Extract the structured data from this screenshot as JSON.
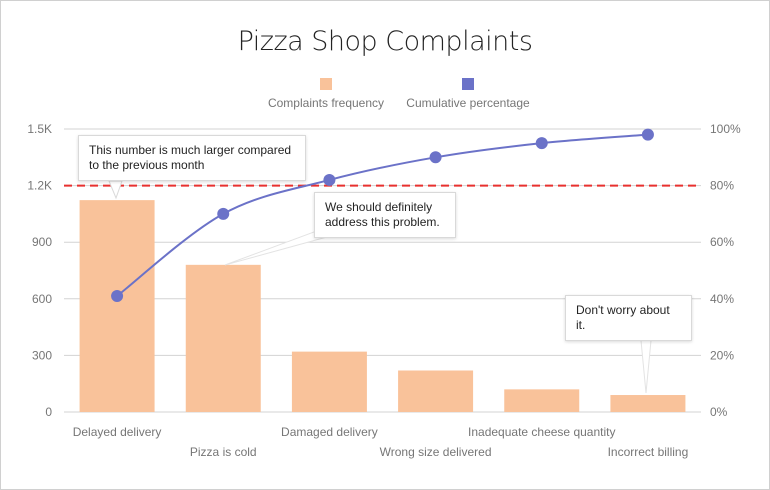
{
  "chart_data": {
    "type": "bar",
    "title": "Pizza Shop Complaints",
    "categories": [
      "Delayed delivery",
      "Pizza is cold",
      "Damaged delivery",
      "Wrong size delivered",
      "Inadequate cheese quantity",
      "Incorrect billing"
    ],
    "series": [
      {
        "name": "Complaints frequency",
        "type": "bar",
        "axis": "left",
        "color": "#f9c29a",
        "values": [
          1123,
          780,
          320,
          220,
          120,
          90
        ]
      },
      {
        "name": "Cumulative percentage",
        "type": "line",
        "axis": "right",
        "color": "#6b72c8",
        "values": [
          41,
          70,
          82,
          90,
          95,
          98
        ]
      }
    ],
    "left_axis": {
      "ylim": [
        0,
        1500
      ],
      "ticks": [
        0,
        300,
        600,
        900,
        1200,
        1500
      ],
      "tick_labels": [
        "0",
        "300",
        "600",
        "900",
        "1.2K",
        "1.5K"
      ]
    },
    "right_axis": {
      "ylim": [
        0,
        100
      ],
      "ticks": [
        0,
        20,
        40,
        60,
        80,
        100
      ],
      "tick_labels": [
        "0%",
        "20%",
        "40%",
        "60%",
        "80%",
        "100%"
      ]
    },
    "threshold": {
      "value": 80,
      "axis": "right",
      "color": "#e8302f",
      "style": "dashed"
    },
    "grid": true,
    "legend": "top-center",
    "xlabel": "",
    "ylabel": "",
    "annotations": [
      {
        "category": "Delayed delivery",
        "text": "This number is much larger compared to the previous month"
      },
      {
        "category": "Pizza is cold",
        "text": "We should definitely address this problem."
      },
      {
        "category": "Incorrect billing",
        "text": "Don't worry about it."
      }
    ]
  }
}
